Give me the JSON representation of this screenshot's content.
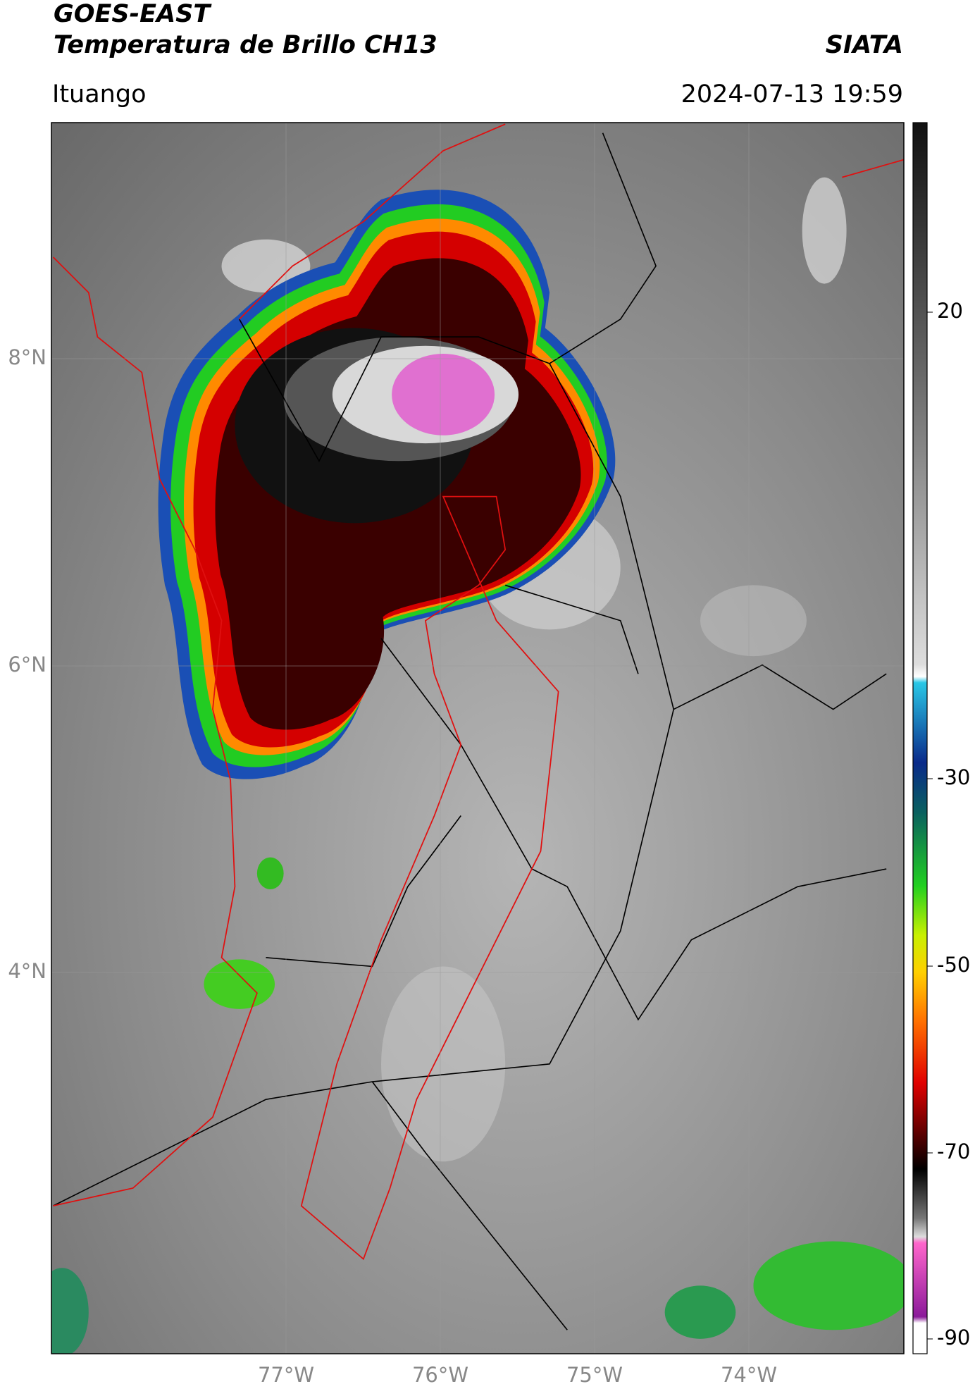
{
  "header": {
    "title_line1": "GOES-EAST",
    "title_line2": "Temperatura de Brillo CH13",
    "brand": "SIATA",
    "location": "Ituango",
    "timestamp": "2024-07-13 19:59"
  },
  "map": {
    "lat_labels": [
      "8°N",
      "6°N",
      "4°N"
    ],
    "lon_labels": [
      "77°W",
      "76°W",
      "75°W",
      "74°W"
    ]
  },
  "colorbar": {
    "ticks": [
      20,
      -30,
      -50,
      -70,
      -90
    ]
  }
}
